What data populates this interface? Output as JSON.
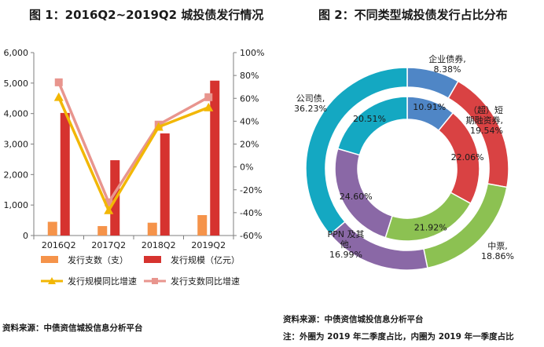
{
  "figure1": {
    "title": "图 1：2016Q2~2019Q2 城投债发行情况",
    "source": "资料来源：中债资信城投信息分析平台"
  },
  "figure2": {
    "title": "图 2：不同类型城投债发行占比分布",
    "source": "资料来源：中债资信城投信息分析平台",
    "note": "注：外圈为 2019 年二季度占比，内圈为 2019 年一季度占比"
  },
  "colors": {
    "issue_count": "#f5934a",
    "issue_scale": "#d6332f",
    "scale_yoy": "#f2b705",
    "count_yoy": "#e8958e",
    "qiye": "#4f86c6",
    "duanrong": "#d94243",
    "zhongpiao": "#8cc152",
    "ppn": "#8a68a6",
    "gongsi": "#14a8c2"
  },
  "chart_data": [
    {
      "type": "bar",
      "title": "图 1：2016Q2~2019Q2 城投债发行情况",
      "categories": [
        "2016Q2",
        "2017Q2",
        "2018Q2",
        "2019Q2"
      ],
      "series": [
        {
          "name": "发行支数（支）",
          "kind": "bar",
          "axis": "left",
          "values": [
            450,
            310,
            420,
            670
          ]
        },
        {
          "name": "发行规模（亿元）",
          "kind": "bar",
          "axis": "left",
          "values": [
            4020,
            2470,
            3350,
            5080
          ]
        },
        {
          "name": "发行规模同比增速",
          "kind": "line",
          "axis": "right",
          "values": [
            61,
            -38,
            35,
            52
          ]
        },
        {
          "name": "发行支数同比增速",
          "kind": "line",
          "axis": "right",
          "values": [
            74,
            -31,
            37,
            61
          ]
        }
      ],
      "ylim": [
        0,
        6000
      ],
      "y_ticks": [
        "0",
        "1,000",
        "2,000",
        "3,000",
        "4,000",
        "5,000",
        "6,000"
      ],
      "y2lim": [
        -60,
        100
      ],
      "y2_ticks": [
        "-60%",
        "-40%",
        "-20%",
        "0%",
        "20%",
        "40%",
        "60%",
        "80%",
        "100%"
      ],
      "legend_position": "bottom"
    },
    {
      "type": "pie",
      "subtype": "double-donut",
      "title": "图 2：不同类型城投债发行占比分布",
      "categories": [
        "企业债券",
        "（超）短期融资券",
        "中票",
        "PPN 及其他",
        "公司债"
      ],
      "series": [
        {
          "name": "外圈",
          "values": [
            8.38,
            19.54,
            18.86,
            16.99,
            36.23
          ],
          "labels": [
            "企业债券,\n8.38%",
            "（超）短\n期融资券,\n19.54%",
            "中票,\n18.86%",
            "PPN 及其\n他,\n16.99%",
            "公司债,\n36.23%"
          ]
        },
        {
          "name": "内圈",
          "values": [
            10.91,
            22.06,
            21.92,
            24.6,
            20.51
          ],
          "labels": [
            "10.91%",
            "22.06%",
            "21.92%",
            "24.60%",
            "20.51%"
          ]
        }
      ]
    }
  ]
}
